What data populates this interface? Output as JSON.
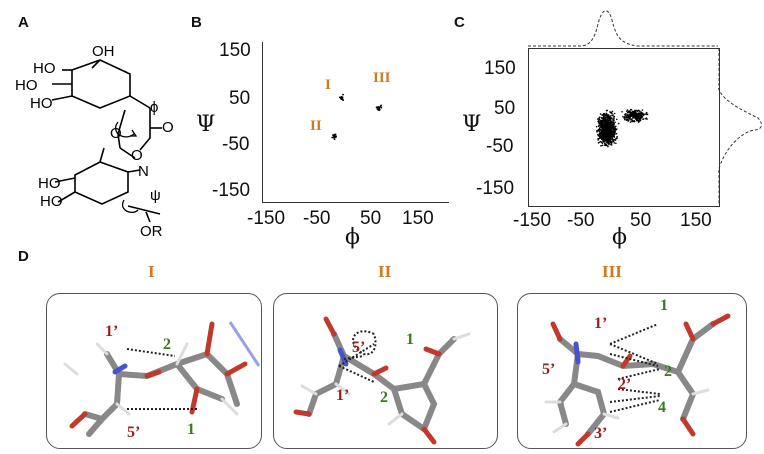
{
  "panels": {
    "a": "A",
    "b": "B",
    "c": "C",
    "d": "D"
  },
  "molecule": {
    "ho_1": "HO",
    "oh_1": "OH",
    "ho_2": "HO",
    "ho_3": "HO",
    "phi": "ϕ",
    "o_ring": "O",
    "o_carbonyl": "O",
    "o_link": "O",
    "n": "N",
    "ho_4": "HO",
    "ho_5": "HO",
    "psi": "ψ",
    "or": "OR"
  },
  "plot_b": {
    "ylabel": "Ψ",
    "xlabel": "ϕ",
    "yticks": [
      "150",
      "50",
      "-50",
      "-150"
    ],
    "xticks": [
      "-150",
      "-50",
      "50",
      "150"
    ],
    "regions": [
      "I",
      "II",
      "III"
    ]
  },
  "plot_c": {
    "ylabel": "Ψ",
    "xlabel": "ϕ",
    "yticks": [
      "150",
      "50",
      "-50",
      "-150"
    ],
    "xticks": [
      "-150",
      "-50",
      "50",
      "150"
    ]
  },
  "chart_data": [
    {
      "type": "scatter",
      "title": "",
      "xlabel": "ϕ",
      "ylabel": "Ψ",
      "xlim": [
        -200,
        200
      ],
      "ylim": [
        -200,
        200
      ],
      "grid": false,
      "clusters": [
        {
          "label": "I",
          "x_center": -30,
          "y_center": 60
        },
        {
          "label": "II",
          "x_center": -45,
          "y_center": -35
        },
        {
          "label": "III",
          "x_center": 50,
          "y_center": 35
        }
      ]
    },
    {
      "type": "scatter",
      "title": "",
      "xlabel": "ϕ",
      "ylabel": "Ψ",
      "xlim": [
        -200,
        200
      ],
      "ylim": [
        -200,
        200
      ],
      "grid": false,
      "clusters": [
        {
          "x_range": [
            -60,
            -10
          ],
          "y_range": [
            -60,
            50
          ],
          "density": "high"
        },
        {
          "x_range": [
            -10,
            55
          ],
          "y_range": [
            10,
            50
          ],
          "density": "medium"
        }
      ],
      "marginals": {
        "phi_peak": -30,
        "psi_peaks": [
          40,
          -40
        ]
      }
    }
  ],
  "conformers": [
    {
      "title": "I",
      "labels_red": [
        "1’",
        "5’"
      ],
      "labels_green": [
        "2",
        "1"
      ]
    },
    {
      "title": "II",
      "labels_red": [
        "5’",
        "1’"
      ],
      "labels_green": [
        "1",
        "2"
      ]
    },
    {
      "title": "III",
      "labels_red": [
        "1’",
        "5’",
        "2’",
        "3’"
      ],
      "labels_green": [
        "1",
        "2",
        "4"
      ]
    }
  ]
}
